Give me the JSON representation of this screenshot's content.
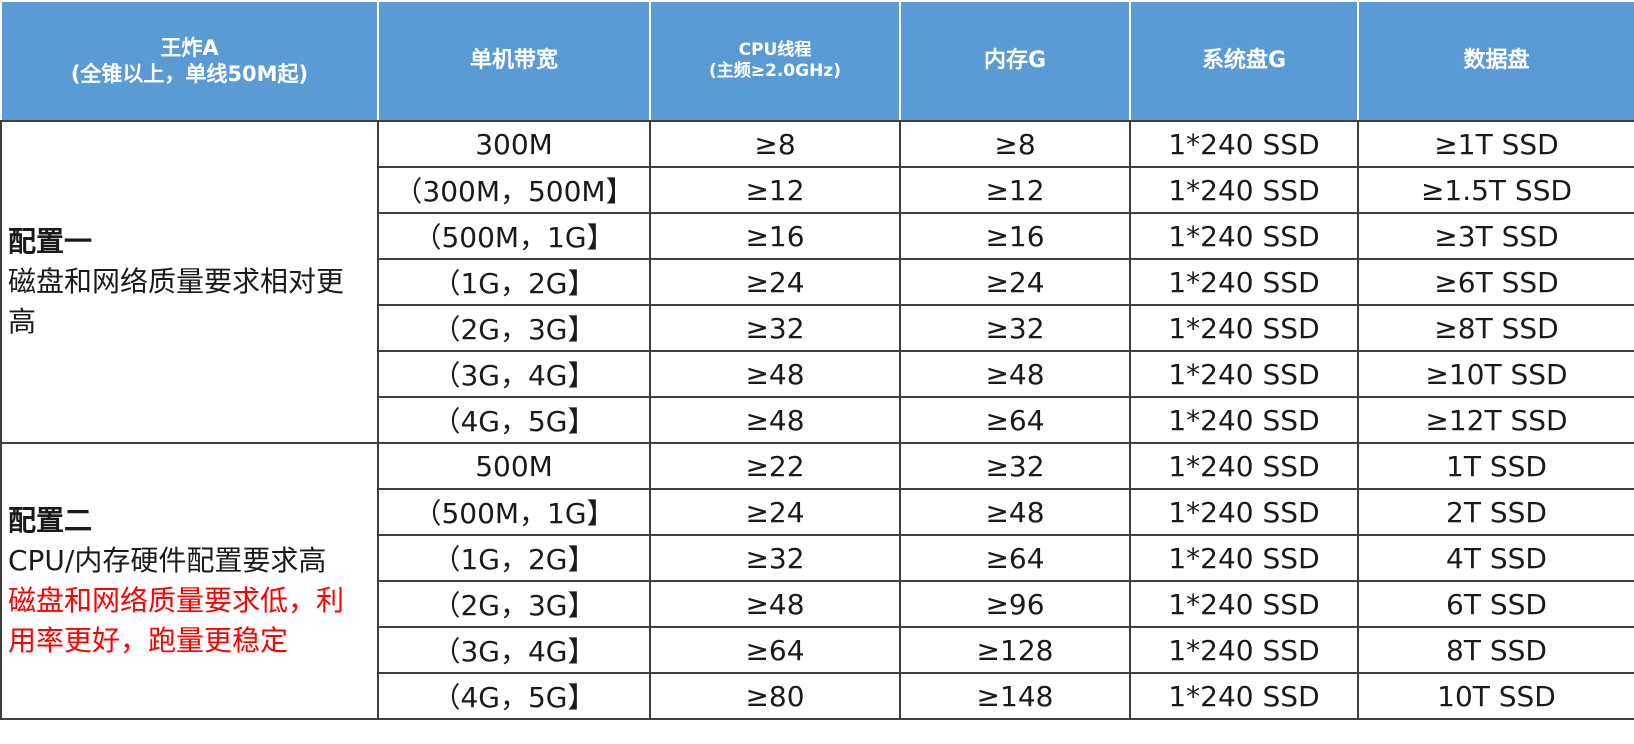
{
  "header": {
    "col0_line1": "王炸A",
    "col0_line2": "(全锥以上，单线50M起)",
    "col1": "单机带宽",
    "col2_line1": "CPU线程",
    "col2_line2": "(主频≥2.0GHz)",
    "col3": "内存G",
    "col4": "系统盘G",
    "col5": "数据盘"
  },
  "config1": {
    "title": "配置一",
    "desc": "磁盘和网络质量要求相对更高",
    "rows": [
      {
        "bandwidth": "300M",
        "cpu": "≥8",
        "mem": "≥8",
        "sys": "1*240 SSD",
        "data": "≥1T SSD"
      },
      {
        "bandwidth": "（300M，500M】",
        "cpu": "≥12",
        "mem": "≥12",
        "sys": "1*240 SSD",
        "data": "≥1.5T SSD"
      },
      {
        "bandwidth": "（500M，1G】",
        "cpu": "≥16",
        "mem": "≥16",
        "sys": "1*240 SSD",
        "data": "≥3T SSD"
      },
      {
        "bandwidth": "（1G，2G】",
        "cpu": "≥24",
        "mem": "≥24",
        "sys": "1*240 SSD",
        "data": "≥6T SSD"
      },
      {
        "bandwidth": "（2G，3G】",
        "cpu": "≥32",
        "mem": "≥32",
        "sys": "1*240 SSD",
        "data": "≥8T SSD"
      },
      {
        "bandwidth": "（3G，4G】",
        "cpu": "≥48",
        "mem": "≥48",
        "sys": "1*240 SSD",
        "data": "≥10T SSD"
      },
      {
        "bandwidth": "（4G，5G】",
        "cpu": "≥48",
        "mem": "≥64",
        "sys": "1*240 SSD",
        "data": "≥12T SSD"
      }
    ]
  },
  "config2": {
    "title": "配置二",
    "desc": "CPU/内存硬件配置要求高",
    "note": "磁盘和网络质量要求低，利用率更好，跑量更稳定",
    "note_color": "#ff0000",
    "rows": [
      {
        "bandwidth": "500M",
        "cpu": "≥22",
        "mem": "≥32",
        "sys": "1*240 SSD",
        "data": "1T SSD"
      },
      {
        "bandwidth": "（500M，1G】",
        "cpu": "≥24",
        "mem": "≥48",
        "sys": "1*240 SSD",
        "data": "2T SSD"
      },
      {
        "bandwidth": "（1G，2G】",
        "cpu": "≥32",
        "mem": "≥64",
        "sys": "1*240 SSD",
        "data": "4T SSD"
      },
      {
        "bandwidth": "（2G，3G】",
        "cpu": "≥48",
        "mem": "≥96",
        "sys": "1*240 SSD",
        "data": "6T SSD"
      },
      {
        "bandwidth": "（3G，4G】",
        "cpu": "≥64",
        "mem": "≥128",
        "sys": "1*240 SSD",
        "data": "8T SSD"
      },
      {
        "bandwidth": "（4G，5G】",
        "cpu": "≥80",
        "mem": "≥148",
        "sys": "1*240 SSD",
        "data": "10T SSD"
      }
    ]
  },
  "colors": {
    "header_bg": "#5b9bd5",
    "header_text": "#ffffff",
    "border": "#3f3f3f",
    "note_red": "#ff0000"
  }
}
